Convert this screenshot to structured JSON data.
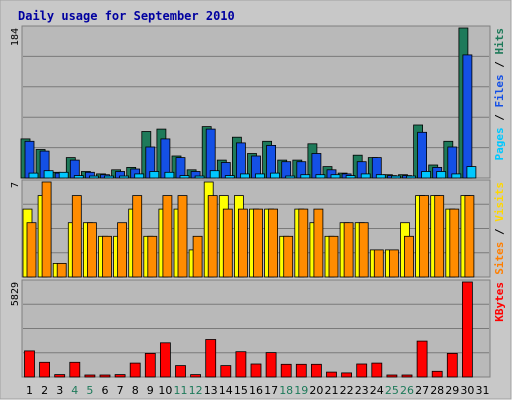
{
  "chart_data": {
    "type": "bar",
    "title": "Daily usage for September 2010",
    "days": [
      "1",
      "2",
      "3",
      "4",
      "5",
      "6",
      "7",
      "8",
      "9",
      "10",
      "11",
      "12",
      "13",
      "14",
      "15",
      "16",
      "17",
      "18",
      "19",
      "20",
      "21",
      "22",
      "23",
      "24",
      "25",
      "26",
      "27",
      "28",
      "29",
      "30",
      "31"
    ],
    "weekend_days": [
      "4",
      "5",
      "11",
      "12",
      "18",
      "19",
      "25",
      "26"
    ],
    "panels": [
      {
        "name": "hits-files-pages",
        "ymax_label": "184",
        "ymax": 184,
        "legend": [
          {
            "text": "Pages",
            "color": "#00c8ff"
          },
          {
            "text": " / ",
            "color": "#000000"
          },
          {
            "text": "Files",
            "color": "#1450e6"
          },
          {
            "text": " / ",
            "color": "#000000"
          },
          {
            "text": "Hits",
            "color": "#1e7a5a"
          }
        ],
        "series": [
          {
            "name": "Hits",
            "color": "#1e7a5a",
            "values": [
              48,
              35,
              7,
              25,
              8,
              5,
              10,
              13,
              57,
              60,
              27,
              10,
              63,
              22,
              50,
              30,
              45,
              22,
              22,
              42,
              14,
              6,
              28,
              25,
              4,
              4,
              65,
              16,
              45,
              184,
              0
            ]
          },
          {
            "name": "Files",
            "color": "#1450e6",
            "values": [
              45,
              33,
              6,
              22,
              7,
              4,
              8,
              11,
              38,
              48,
              25,
              8,
              60,
              19,
              43,
              27,
              40,
              20,
              20,
              30,
              10,
              5,
              20,
              25,
              3,
              3,
              56,
              13,
              38,
              151,
              0
            ]
          },
          {
            "name": "Pages",
            "color": "#00c8ff",
            "values": [
              6,
              9,
              7,
              3,
              2,
              1,
              1,
              5,
              8,
              7,
              3,
              1,
              9,
              3,
              5,
              5,
              6,
              2,
              4,
              4,
              4,
              3,
              5,
              4,
              1,
              1,
              8,
              8,
              5,
              14,
              0
            ]
          }
        ]
      },
      {
        "name": "visits-sites",
        "ymax_label": "7",
        "ymax": 7,
        "legend": [
          {
            "text": "Sites",
            "color": "#ff7f00"
          },
          {
            "text": " / ",
            "color": "#000000"
          },
          {
            "text": "Visits",
            "color": "#ffd700"
          }
        ],
        "series": [
          {
            "name": "Visits",
            "color": "#ffff00",
            "values": [
              5,
              6,
              1,
              4,
              4,
              3,
              3,
              5,
              3,
              5,
              5,
              2,
              7,
              6,
              6,
              5,
              5,
              3,
              5,
              4,
              3,
              4,
              4,
              2,
              2,
              4,
              6,
              6,
              5,
              6,
              0
            ]
          },
          {
            "name": "Sites",
            "color": "#ff8c00",
            "values": [
              4,
              7,
              1,
              6,
              4,
              3,
              4,
              6,
              3,
              6,
              6,
              3,
              6,
              5,
              5,
              5,
              5,
              3,
              5,
              5,
              3,
              4,
              4,
              2,
              2,
              3,
              6,
              6,
              5,
              6,
              0
            ]
          }
        ]
      },
      {
        "name": "kbytes",
        "ymax_label": "5829",
        "ymax": 5829,
        "legend": [
          {
            "text": "KBytes",
            "color": "#ff0000"
          }
        ],
        "series": [
          {
            "name": "KBytes",
            "color": "#ff0000",
            "values": [
              1600,
              900,
              150,
              900,
              80,
              70,
              150,
              850,
              1450,
              2100,
              700,
              150,
              2300,
              700,
              1550,
              800,
              1500,
              780,
              780,
              780,
              300,
              250,
              800,
              850,
              60,
              60,
              2200,
              350,
              1450,
              5829,
              0
            ]
          }
        ]
      }
    ],
    "colors": {
      "frame_bg": "#c8c8c8",
      "plot_bg": "#b9b9b9",
      "gridline": "#7a7a7a",
      "title": "#0000a0",
      "weekday_label": "#000000",
      "weekend_label": "#1e7a5a"
    }
  }
}
